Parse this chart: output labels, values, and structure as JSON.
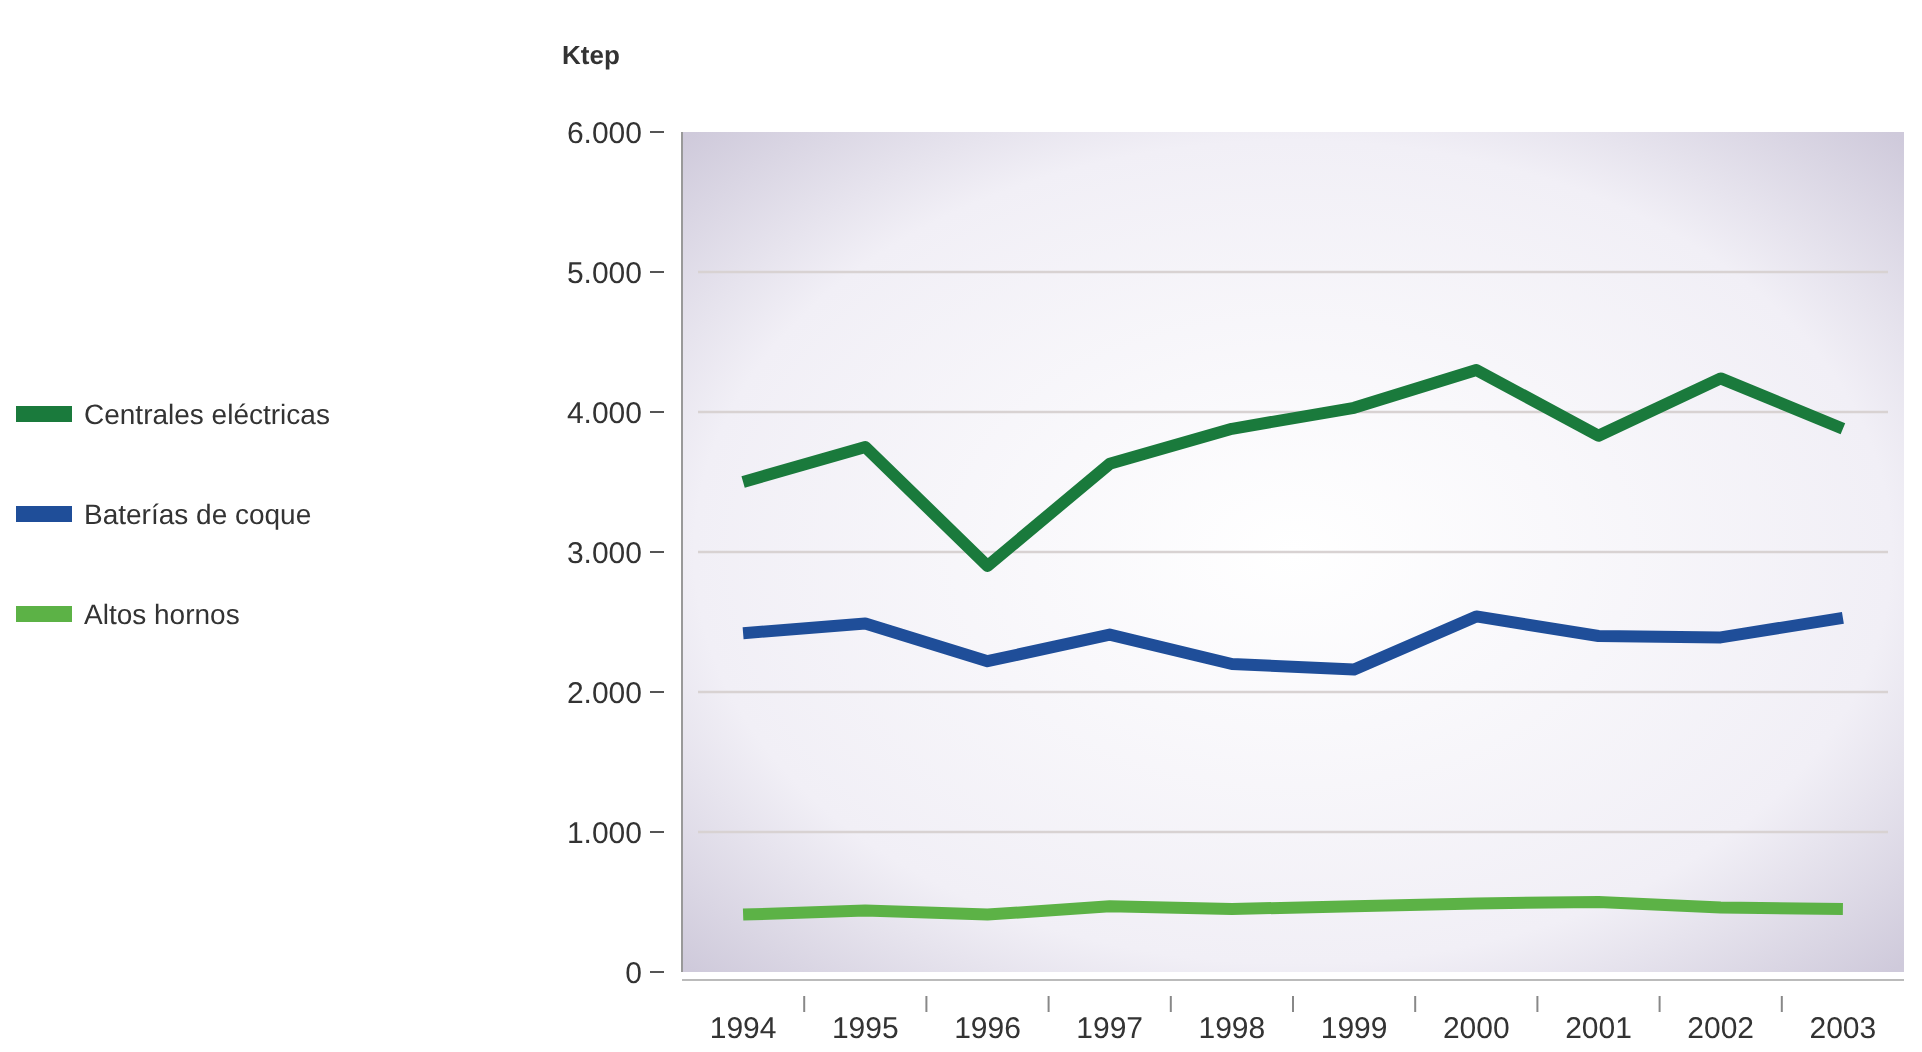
{
  "chart_data": {
    "type": "line",
    "ylabel": "Ktep",
    "categories": [
      "1994",
      "1995",
      "1996",
      "1997",
      "1998",
      "1999",
      "2000",
      "2001",
      "2002",
      "2003"
    ],
    "series": [
      {
        "name": "Centrales eléctricas",
        "color": "#1a7a3c",
        "values": [
          3500,
          3750,
          2900,
          3630,
          3880,
          4030,
          4300,
          3830,
          4240,
          3880
        ]
      },
      {
        "name": "Baterías de coque",
        "color": "#1f4e99",
        "values": [
          2420,
          2490,
          2220,
          2410,
          2200,
          2160,
          2540,
          2400,
          2390,
          2530
        ]
      },
      {
        "name": "Altos hornos",
        "color": "#5cb246",
        "values": [
          410,
          440,
          410,
          470,
          450,
          470,
          490,
          500,
          460,
          450
        ]
      }
    ],
    "ylim": [
      0,
      6000
    ],
    "yticks": [
      0,
      {
        "value": 1000,
        "label": "1.000"
      },
      {
        "value": 2000,
        "label": "2.000"
      },
      {
        "value": 3000,
        "label": "3.000"
      },
      {
        "value": 4000,
        "label": "4.000"
      },
      {
        "value": 5000,
        "label": "5.000"
      },
      {
        "value": 6000,
        "label": "6.000"
      }
    ],
    "grid": "y",
    "legend": "left",
    "marker": "none",
    "line_style": "solid"
  }
}
